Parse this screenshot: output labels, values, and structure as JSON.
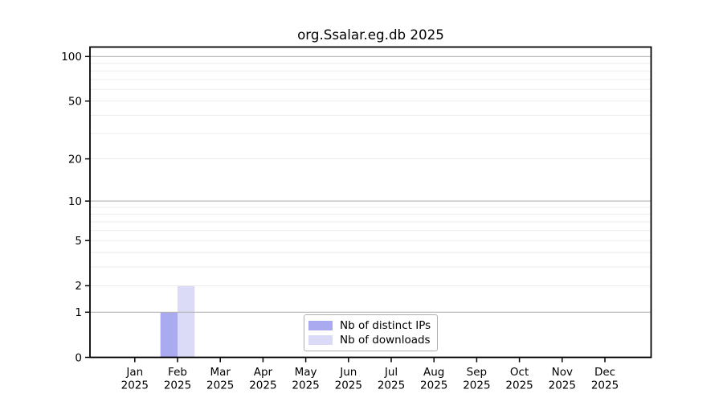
{
  "chart_data": {
    "type": "bar",
    "title": "org.Ssalar.eg.db 2025",
    "categories": [
      "Jan",
      "Feb",
      "Mar",
      "Apr",
      "May",
      "Jun",
      "Jul",
      "Aug",
      "Sep",
      "Oct",
      "Nov",
      "Dec"
    ],
    "x_tick_year": "2025",
    "series": [
      {
        "name": "Nb of distinct IPs",
        "color": "#aaaaf0",
        "values": [
          0,
          1,
          0,
          0,
          0,
          0,
          0,
          0,
          0,
          0,
          0,
          0
        ]
      },
      {
        "name": "Nb of downloads",
        "color": "#dbdbf8",
        "values": [
          0,
          2,
          0,
          0,
          0,
          0,
          0,
          0,
          0,
          0,
          0,
          0
        ]
      }
    ],
    "y_scale": "log1p",
    "y_tick_values": [
      0,
      1,
      2,
      5,
      10,
      20,
      50,
      100
    ],
    "ylim": [
      0,
      116
    ],
    "xlabel": "",
    "ylabel": "",
    "grid": {
      "on": true,
      "major_values": [
        1,
        10,
        100
      ],
      "minor_values": [
        2,
        3,
        4,
        5,
        6,
        7,
        8,
        9,
        20,
        30,
        40,
        50,
        60,
        70,
        80,
        90
      ],
      "major_color": "#b3b3b3",
      "minor_color": "#eaeaea"
    },
    "legend": {
      "position": "lower center inside",
      "entries": [
        "Nb of distinct IPs",
        "Nb of downloads"
      ]
    }
  },
  "colors": {
    "background": "#ffffff",
    "spine": "#000000",
    "tick": "#000000",
    "text": "#000000",
    "legend_border": "#b0b0b0"
  }
}
